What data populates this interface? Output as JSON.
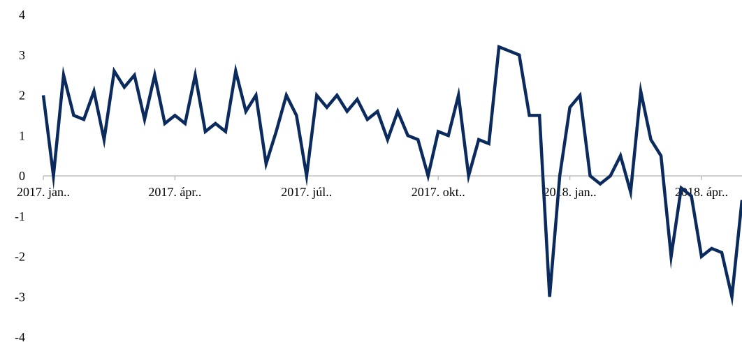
{
  "chart_data": {
    "type": "line",
    "title": "",
    "xlabel": "",
    "ylabel": "",
    "ylim": [
      -4,
      4
    ],
    "yticks": [
      4,
      3,
      2,
      1,
      0,
      -1,
      -2,
      -3,
      -4
    ],
    "x_tick_labels": [
      "2017. jan..",
      "2017. ápr..",
      "2017. júl..",
      "2017. okt..",
      "2018. jan..",
      "2018. ápr.."
    ],
    "x_tick_indices": [
      0,
      13,
      26,
      39,
      52,
      65
    ],
    "grid": false,
    "legend": "none",
    "series": [
      {
        "color": "#0b2a5e",
        "values": [
          2.0,
          0.0,
          2.5,
          1.5,
          1.4,
          2.1,
          0.9,
          2.6,
          2.2,
          2.5,
          1.4,
          2.5,
          1.3,
          1.5,
          1.3,
          2.5,
          1.1,
          1.3,
          1.1,
          2.6,
          1.6,
          2.0,
          0.3,
          1.1,
          2.0,
          1.5,
          0.0,
          2.0,
          1.7,
          2.0,
          1.6,
          1.9,
          1.4,
          1.6,
          0.9,
          1.6,
          1.0,
          0.9,
          0.0,
          1.1,
          1.0,
          2.0,
          0.0,
          0.9,
          0.8,
          3.2,
          3.1,
          3.0,
          1.5,
          1.5,
          -3.0,
          0.0,
          1.7,
          2.0,
          0.0,
          -0.2,
          0.0,
          0.5,
          -0.4,
          2.1,
          0.9,
          0.5,
          -2.0,
          -0.3,
          -0.5,
          -2.0,
          -1.8,
          -1.9,
          -3.0,
          -0.6
        ]
      }
    ]
  }
}
